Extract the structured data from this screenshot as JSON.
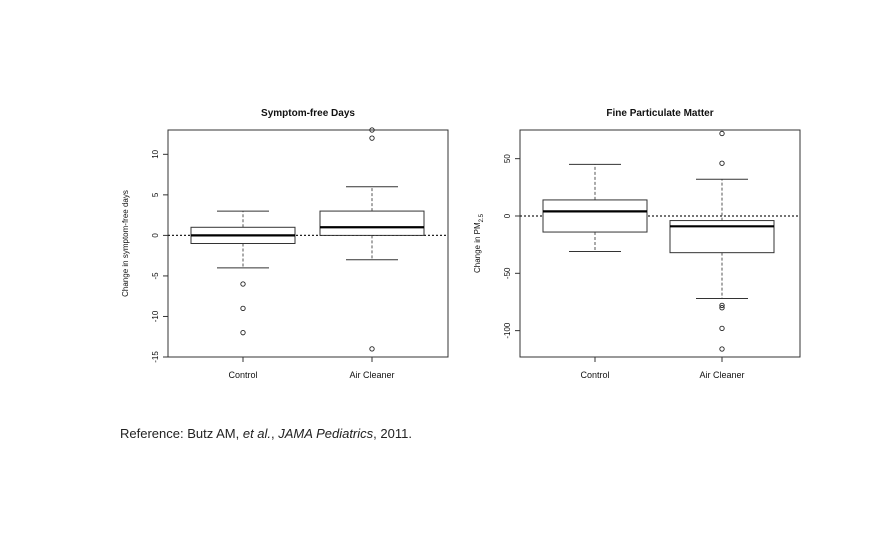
{
  "chart_data": [
    {
      "type": "box",
      "title": "Symptom-free Days",
      "ylabel": "Change in symptom-free days",
      "xlabel": "",
      "categories": [
        "Control",
        "Air Cleaner"
      ],
      "ylim": [
        -15,
        13
      ],
      "yticks": [
        -15,
        -10,
        -5,
        0,
        5,
        10
      ],
      "reference_line": 0,
      "boxes": [
        {
          "category": "Control",
          "whisker_low": -4,
          "q1": -1,
          "median": 0,
          "q3": 1,
          "whisker_high": 3,
          "outliers": [
            -6,
            -9,
            -12
          ]
        },
        {
          "category": "Air Cleaner",
          "whisker_low": -3,
          "q1": 0,
          "median": 1,
          "q3": 3,
          "whisker_high": 6,
          "outliers": [
            13,
            12,
            -14
          ]
        }
      ]
    },
    {
      "type": "box",
      "title": "Fine Particulate Matter",
      "ylabel": "Change in PM",
      "ylabel_sub": "2.5",
      "xlabel": "",
      "categories": [
        "Control",
        "Air Cleaner"
      ],
      "ylim": [
        -123,
        75
      ],
      "yticks": [
        -100,
        -50,
        0,
        50
      ],
      "reference_line": 0,
      "boxes": [
        {
          "category": "Control",
          "whisker_low": -31,
          "q1": -14,
          "median": 4,
          "q3": 14,
          "whisker_high": 45,
          "outliers": []
        },
        {
          "category": "Air Cleaner",
          "whisker_low": -72,
          "q1": -32,
          "median": -9,
          "q3": -4,
          "whisker_high": 32,
          "outliers": [
            72,
            46,
            -78,
            -80,
            -98,
            -116
          ]
        }
      ]
    }
  ],
  "reference": {
    "prefix": "Reference: Butz AM, ",
    "etal": "et al.",
    "middle": ", ",
    "journal": "JAMA Pediatrics",
    "suffix": ", 2011."
  }
}
